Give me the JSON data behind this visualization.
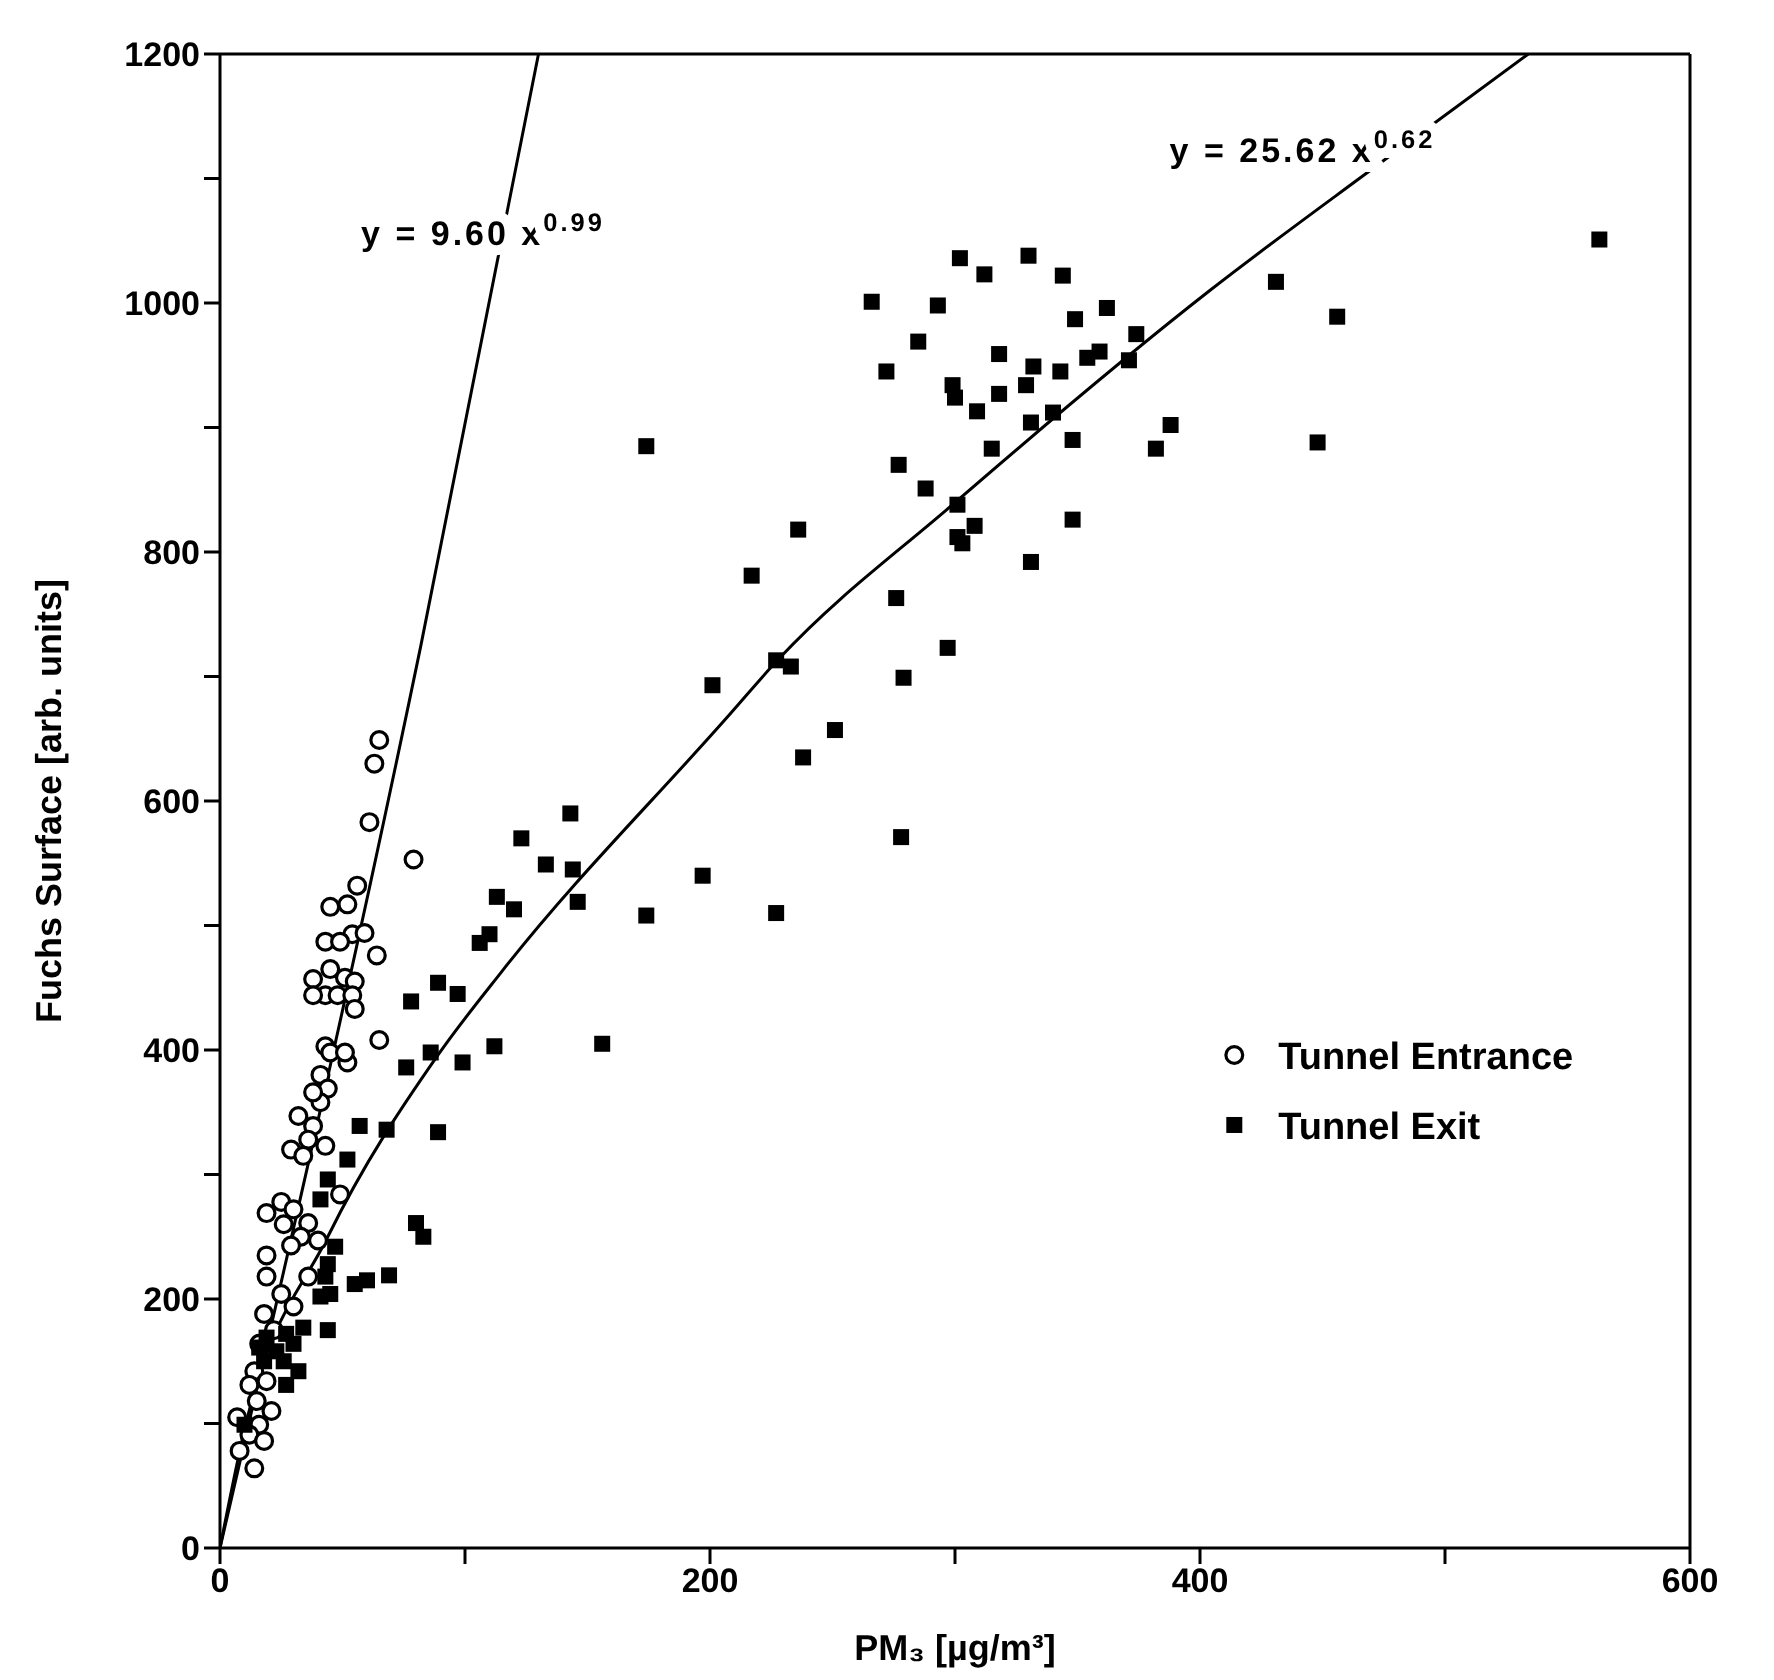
{
  "chart_data": {
    "type": "scatter",
    "xlabel": "PM₃ [µg/m³]",
    "ylabel": "Fuchs Surface [arb. units]",
    "xlim": [
      0,
      600
    ],
    "xticks": [
      0,
      {
        "value": 100,
        "label": null
      },
      200,
      {
        "value": 300,
        "label": null
      },
      400,
      {
        "value": 500,
        "label": null
      },
      600
    ],
    "ylim": [
      0,
      1200
    ],
    "yticks": [
      0,
      {
        "value": 100,
        "label": null
      },
      200,
      {
        "value": 300,
        "label": null
      },
      400,
      {
        "value": 500,
        "label": null
      },
      600,
      {
        "value": 700,
        "label": null
      },
      800,
      {
        "value": 900,
        "label": null
      },
      1000,
      {
        "value": 1100,
        "label": null
      },
      1200
    ],
    "legend": "right",
    "annotations": [
      "y = 9.60 x$^{0.99}$",
      "y = 25.62 x$^{0.62}$"
    ],
    "series": [
      {
        "name": "Tunnel Entrance",
        "marker": "circle",
        "color": "#000000",
        "x": [
          65,
          63,
          61,
          79,
          56,
          45,
          52,
          54,
          59,
          43,
          49,
          64,
          38,
          45,
          51,
          55,
          43,
          48,
          54,
          55,
          38,
          43,
          65,
          52,
          45,
          51,
          41,
          44,
          41,
          38,
          32,
          38,
          36,
          29,
          34,
          43,
          49,
          25,
          19,
          30,
          36,
          26,
          33,
          40,
          29,
          19,
          19,
          25,
          18,
          30,
          36,
          22,
          16,
          14,
          12,
          19,
          15,
          21,
          16,
          12,
          8,
          18,
          14,
          7
        ],
        "values": [
          649,
          630,
          583,
          553,
          532,
          515,
          517,
          493,
          494,
          487,
          487,
          476,
          457,
          465,
          458,
          455,
          444,
          444,
          444,
          433,
          444,
          403,
          408,
          390,
          398,
          398,
          380,
          369,
          358,
          366,
          347,
          339,
          328,
          320,
          315,
          323,
          284,
          278,
          269,
          272,
          261,
          260,
          250,
          247,
          243,
          235,
          218,
          204,
          188,
          194,
          218,
          175,
          164,
          142,
          131,
          134,
          118,
          110,
          99,
          91,
          78,
          86,
          64,
          105
        ]
      },
      {
        "name": "Tunnel Exit",
        "marker": "square",
        "color": "#000000",
        "x": [
          563,
          431,
          456,
          448,
          302,
          330,
          312,
          344,
          266,
          293,
          362,
          349,
          374,
          285,
          272,
          318,
          332,
          343,
          354,
          359,
          371,
          299,
          300,
          318,
          329,
          309,
          331,
          340,
          348,
          315,
          388,
          382,
          277,
          288,
          301,
          301,
          308,
          303,
          348,
          331,
          276,
          297,
          279,
          251,
          278,
          174,
          236,
          217,
          201,
          227,
          233,
          238,
          143,
          123,
          133,
          144,
          120,
          146,
          174,
          197,
          227,
          156,
          113,
          106,
          110,
          89,
          97,
          78,
          86,
          112,
          76,
          99,
          57,
          68,
          89,
          52,
          80,
          83,
          47,
          44,
          60,
          69,
          55,
          44,
          41,
          43,
          45,
          41,
          44,
          34,
          27,
          19,
          16,
          23,
          18,
          26,
          32,
          27,
          30,
          10
        ],
        "values": [
          1051,
          1017,
          989,
          888,
          1036,
          1038,
          1023,
          1022,
          1001,
          998,
          996,
          987,
          975,
          969,
          945,
          959,
          949,
          945,
          956,
          961,
          954,
          934,
          924,
          927,
          934,
          913,
          904,
          912,
          890,
          883,
          902,
          883,
          870,
          851,
          838,
          812,
          821,
          807,
          826,
          792,
          763,
          723,
          699,
          657,
          571,
          885,
          818,
          781,
          693,
          713,
          708,
          635,
          590,
          570,
          549,
          545,
          513,
          519,
          508,
          540,
          510,
          405,
          523,
          486,
          493,
          454,
          445,
          439,
          398,
          403,
          386,
          390,
          339,
          336,
          334,
          312,
          261,
          250,
          242,
          228,
          215,
          219,
          212,
          296,
          280,
          218,
          204,
          202,
          175,
          177,
          172,
          169,
          161,
          158,
          150,
          150,
          142,
          131,
          164,
          99
        ]
      },
      {
        "type": "line",
        "color": "#000000",
        "x": [
          0,
          82,
          130
        ],
        "values": [
          0,
          725,
          1200
        ]
      },
      {
        "type": "line",
        "color": "#000000",
        "x": [
          0,
          10,
          44,
          89,
          115,
          206,
          228,
          299,
          404,
          474,
          534
        ],
        "values": [
          0,
          95,
          250,
          396,
          463,
          665,
          714,
          838,
          1010,
          1113,
          1200
        ]
      }
    ]
  }
}
